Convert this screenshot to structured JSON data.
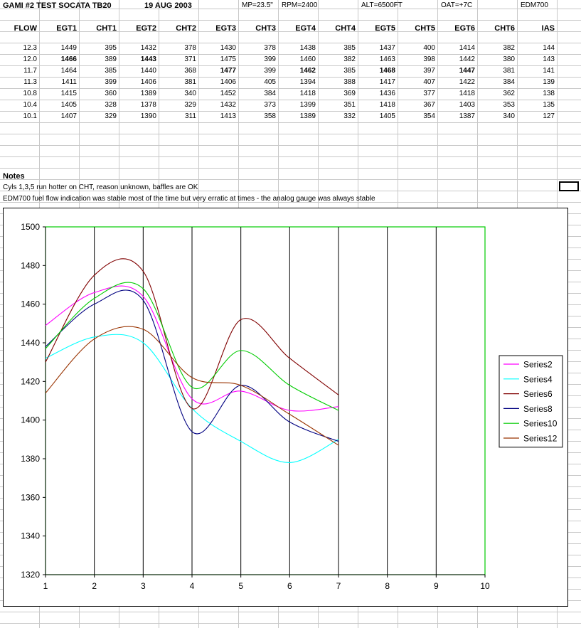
{
  "header": {
    "title": "GAMI #2 TEST SOCATA TB20",
    "date": "19 AUG 2003",
    "mp": "MP=23.5\"",
    "rpm": "RPM=2400",
    "alt": "ALT=6500FT",
    "oat": "OAT=+7C",
    "instrument": "EDM700"
  },
  "table": {
    "columns": [
      "FLOW",
      "EGT1",
      "CHT1",
      "EGT2",
      "CHT2",
      "EGT3",
      "CHT3",
      "EGT4",
      "CHT4",
      "EGT5",
      "CHT5",
      "EGT6",
      "CHT6",
      "IAS"
    ],
    "rows": [
      [
        "12.3",
        "1449",
        "395",
        "1432",
        "378",
        "1430",
        "378",
        "1438",
        "385",
        "1437",
        "400",
        "1414",
        "382",
        "144"
      ],
      [
        "12.0",
        "1466",
        "389",
        "1443",
        "371",
        "1475",
        "399",
        "1460",
        "382",
        "1463",
        "398",
        "1442",
        "380",
        "143"
      ],
      [
        "11.7",
        "1464",
        "385",
        "1440",
        "368",
        "1477",
        "399",
        "1462",
        "385",
        "1468",
        "397",
        "1447",
        "381",
        "141"
      ],
      [
        "11.3",
        "1411",
        "399",
        "1406",
        "381",
        "1406",
        "405",
        "1394",
        "388",
        "1417",
        "407",
        "1422",
        "384",
        "139"
      ],
      [
        "10.8",
        "1415",
        "360",
        "1389",
        "340",
        "1452",
        "384",
        "1418",
        "369",
        "1436",
        "377",
        "1418",
        "362",
        "138"
      ],
      [
        "10.4",
        "1405",
        "328",
        "1378",
        "329",
        "1432",
        "373",
        "1399",
        "351",
        "1418",
        "367",
        "1403",
        "353",
        "135"
      ],
      [
        "10.1",
        "1407",
        "329",
        "1390",
        "311",
        "1413",
        "358",
        "1389",
        "332",
        "1405",
        "354",
        "1387",
        "340",
        "127"
      ]
    ],
    "bold_cells": [
      [
        1,
        1
      ],
      [
        1,
        3
      ],
      [
        2,
        5
      ],
      [
        2,
        7
      ],
      [
        2,
        9
      ],
      [
        2,
        11
      ]
    ]
  },
  "notes": {
    "heading": "Notes",
    "line1": "Cyls 1,3,5 run hotter on CHT, reason unknown, baffles are OK",
    "line2": "EDM700 fuel flow indication was stable most of the time but very erratic at times - the analog gauge was always stable"
  },
  "chart_data": {
    "type": "line",
    "x": [
      1,
      2,
      3,
      4,
      5,
      6,
      7
    ],
    "xlim": [
      1,
      10
    ],
    "ylim": [
      1320,
      1500
    ],
    "x_ticks": [
      1,
      2,
      3,
      4,
      5,
      6,
      7,
      8,
      9,
      10
    ],
    "y_ticks": [
      1320,
      1340,
      1360,
      1380,
      1400,
      1420,
      1440,
      1460,
      1480,
      1500
    ],
    "smooth": true,
    "grid": "vertical",
    "legend_position": "right",
    "series": [
      {
        "name": "Series2",
        "color": "#ff00ff",
        "values": [
          1449,
          1466,
          1464,
          1411,
          1415,
          1405,
          1407
        ]
      },
      {
        "name": "Series4",
        "color": "#00ffff",
        "values": [
          1432,
          1443,
          1440,
          1406,
          1389,
          1378,
          1390
        ]
      },
      {
        "name": "Series6",
        "color": "#800000",
        "values": [
          1430,
          1475,
          1477,
          1406,
          1452,
          1432,
          1413
        ]
      },
      {
        "name": "Series8",
        "color": "#000080",
        "values": [
          1438,
          1460,
          1462,
          1394,
          1418,
          1399,
          1389
        ]
      },
      {
        "name": "Series10",
        "color": "#00cc00",
        "values": [
          1437,
          1463,
          1468,
          1417,
          1436,
          1418,
          1405
        ]
      },
      {
        "name": "Series12",
        "color": "#993300",
        "values": [
          1414,
          1442,
          1447,
          1422,
          1418,
          1403,
          1387
        ]
      }
    ]
  }
}
